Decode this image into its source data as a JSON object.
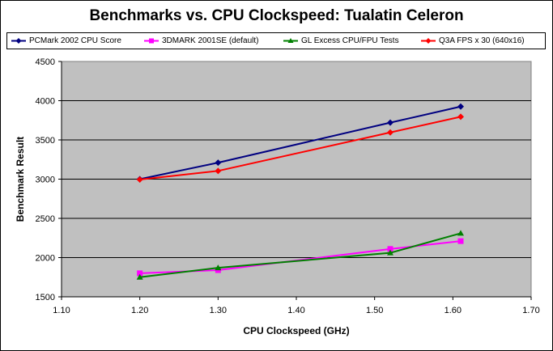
{
  "chart_data": {
    "type": "line",
    "title": "Benchmarks vs. CPU Clockspeed: Tualatin Celeron",
    "xlabel": "CPU Clockspeed (GHz)",
    "ylabel": "Benchmark Result",
    "xlim": [
      1.1,
      1.7
    ],
    "ylim": [
      1500,
      4500
    ],
    "x_ticks": [
      "1.10",
      "1.20",
      "1.30",
      "1.40",
      "1.50",
      "1.60",
      "1.70"
    ],
    "y_ticks": [
      "1500",
      "2000",
      "2500",
      "3000",
      "3500",
      "4000",
      "4500"
    ],
    "grid": "horizontal",
    "legend_position": "top",
    "plot_background": "#c0c0c0",
    "series": [
      {
        "name": "PCMark 2002 CPU Score",
        "color": "#000080",
        "marker": "diamond",
        "x": [
          1.2,
          1.3,
          1.52,
          1.61
        ],
        "values": [
          3000,
          3210,
          3720,
          3925
        ]
      },
      {
        "name": "3DMARK 2001SE (default)",
        "color": "#ff00ff",
        "marker": "square",
        "x": [
          1.2,
          1.3,
          1.52,
          1.61
        ],
        "values": [
          1800,
          1840,
          2110,
          2210
        ]
      },
      {
        "name": "GL Excess CPU/FPU Tests",
        "color": "#008000",
        "marker": "triangle",
        "x": [
          1.2,
          1.3,
          1.52,
          1.61
        ],
        "values": [
          1750,
          1870,
          2060,
          2310
        ]
      },
      {
        "name": "Q3A FPS x 30 (640x16)",
        "color": "#ff0000",
        "marker": "circle",
        "x": [
          1.2,
          1.3,
          1.52,
          1.61
        ],
        "values": [
          2995,
          3105,
          3595,
          3795
        ]
      }
    ]
  }
}
